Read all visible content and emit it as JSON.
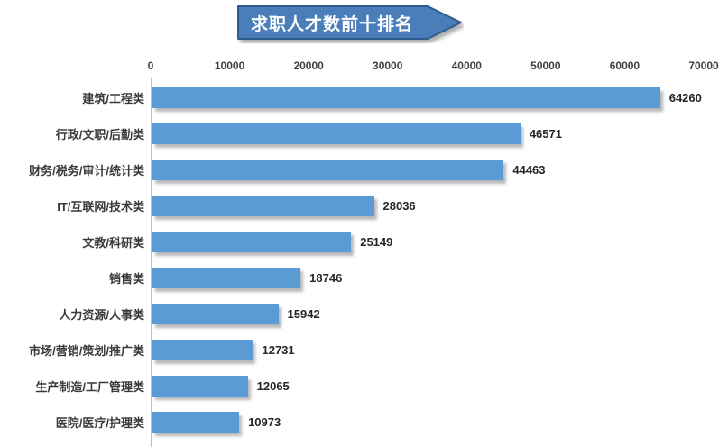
{
  "title": {
    "text": "求职人才数前十排名"
  },
  "chart_data": {
    "type": "bar",
    "orientation": "horizontal",
    "title": "求职人才数前十排名",
    "categories": [
      "建筑/工程类",
      "行政/文职/后勤类",
      "财务/税务/审计/统计类",
      "IT/互联网/技术类",
      "文教/科研类",
      "销售类",
      "人力资源/人事类",
      "市场/营销/策划/推广类",
      "生产制造/工厂管理类",
      "医院/医疗/护理类"
    ],
    "values": [
      64260,
      46571,
      44463,
      28036,
      25149,
      18746,
      15942,
      12731,
      12065,
      10973
    ],
    "x_ticks": [
      "0",
      "10000",
      "20000",
      "30000",
      "40000",
      "50000",
      "60000",
      "70000"
    ],
    "xlim": [
      0,
      70000
    ],
    "ylabel": "",
    "xlabel": "",
    "grid": "off",
    "legend": "none",
    "data_labels": true,
    "colors": {
      "bar": "#5b9bd5",
      "banner_fill": "#4a7ebb",
      "banner_border": "#2f5b8e",
      "axis_line": "#bfbfbf",
      "label_text": "#3a3a3a"
    }
  }
}
